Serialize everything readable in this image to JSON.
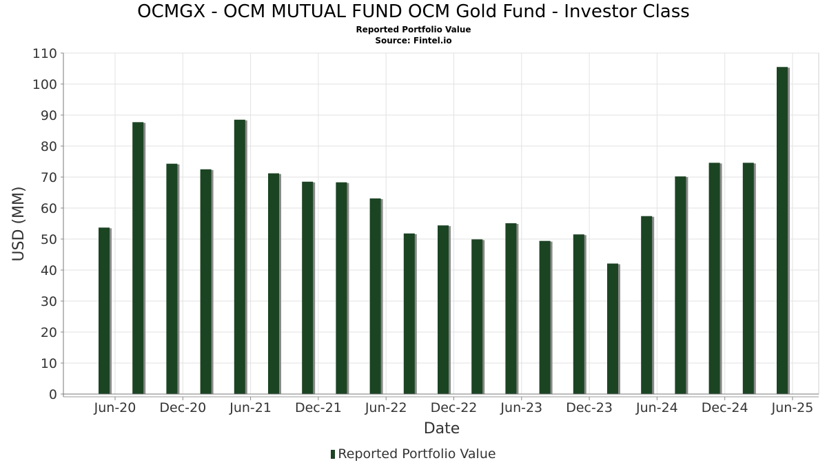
{
  "chart_data": {
    "type": "bar",
    "title": "OCMGX - OCM MUTUAL FUND OCM Gold Fund - Investor Class",
    "subtitle": "Reported Portfolio Value",
    "source": "Source: Fintel.io",
    "xlabel": "Date",
    "ylabel": "USD (MM)",
    "ylim": [
      0,
      110
    ],
    "yticks": [
      0,
      10,
      20,
      30,
      40,
      50,
      60,
      70,
      80,
      90,
      100,
      110
    ],
    "grid": true,
    "legend_position": "bottom",
    "xticks": [
      "Jun-20",
      "Dec-20",
      "Jun-21",
      "Dec-21",
      "Jun-22",
      "Dec-22",
      "Jun-23",
      "Dec-23",
      "Jun-24",
      "Dec-24",
      "Jun-25"
    ],
    "categories": [
      "May-20",
      "Aug-20",
      "Nov-20",
      "Feb-21",
      "May-21",
      "Aug-21",
      "Nov-21",
      "Feb-22",
      "May-22",
      "Aug-22",
      "Nov-22",
      "Feb-23",
      "May-23",
      "Aug-23",
      "Nov-23",
      "Feb-24",
      "May-24",
      "Aug-24",
      "Nov-24",
      "Feb-25",
      "May-25"
    ],
    "series": [
      {
        "name": "Reported Portfolio Value",
        "color": "#1b4423",
        "values": [
          53.7,
          87.7,
          74.3,
          72.5,
          88.5,
          71.2,
          68.5,
          68.3,
          63.1,
          51.8,
          54.4,
          49.9,
          55.1,
          49.4,
          51.5,
          42.1,
          57.4,
          70.2,
          74.6,
          74.6,
          105.5
        ]
      }
    ]
  }
}
